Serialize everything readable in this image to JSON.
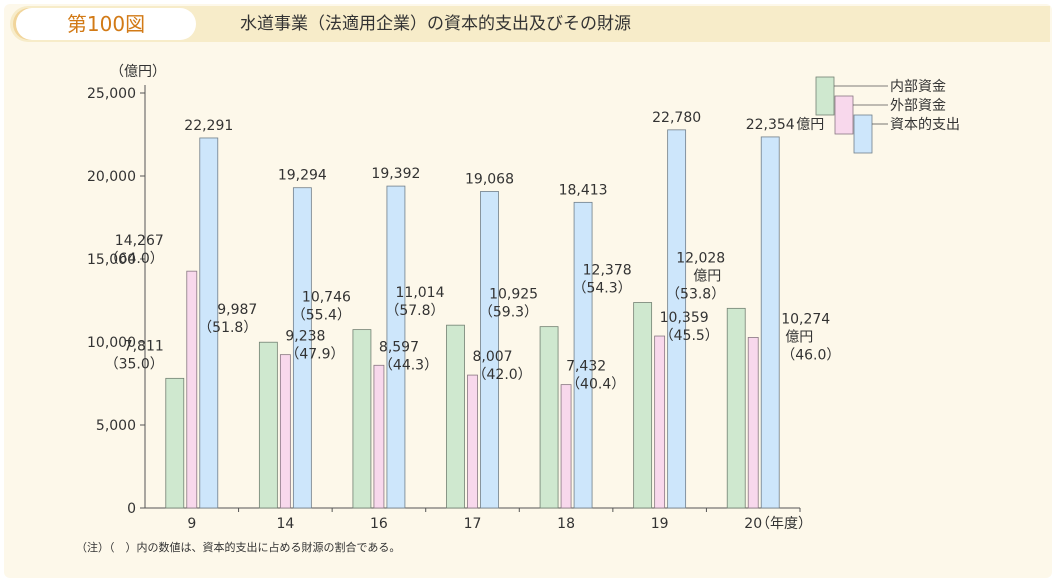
{
  "header": {
    "figure_label": "第100図",
    "title": "水道事業（法適用企業）の資本的支出及びその財源"
  },
  "note": "（注）（　）内の数値は、資本的支出に占める財源の割合である。",
  "chart_data": {
    "type": "bar",
    "unit_label": "（億円）",
    "x_axis_unit": "（年度）",
    "categories": [
      "9",
      "14",
      "16",
      "17",
      "18",
      "19",
      "20"
    ],
    "ylim": [
      0,
      25000
    ],
    "yticks": [
      "0",
      "5,000",
      "10,000",
      "15,000",
      "20,000",
      "25,000"
    ],
    "ytick_values": [
      0,
      5000,
      10000,
      15000,
      20000,
      25000
    ],
    "legend_position": "top-right",
    "series": [
      {
        "name": "内部資金",
        "color": "#cfe8cf",
        "values": [
          7811,
          9987,
          10746,
          11014,
          10925,
          12378,
          12028
        ],
        "labels": [
          "7,811",
          "9,987",
          "10,746",
          "11,014",
          "10,925",
          "12,378",
          "12,028"
        ],
        "shares": [
          "（35.0）",
          "（51.8）",
          "（55.4）",
          "（57.8）",
          "（59.3）",
          "（54.3）",
          "（53.8）"
        ]
      },
      {
        "name": "外部資金",
        "color": "#f8d8ec",
        "values": [
          14267,
          9238,
          8597,
          8007,
          7432,
          10359,
          10274
        ],
        "labels": [
          "14,267",
          "9,238",
          "8,597",
          "8,007",
          "7,432",
          "10,359",
          "10,274"
        ],
        "shares": [
          "（64.0）",
          "（47.9）",
          "（44.3）",
          "（42.0）",
          "（40.4）",
          "（45.5）",
          "（46.0）"
        ]
      },
      {
        "name": "資本的支出",
        "color": "#cde6fb",
        "values": [
          22291,
          19294,
          19392,
          19068,
          18413,
          22780,
          22354
        ],
        "labels": [
          "22,291",
          "19,294",
          "19,392",
          "19,068",
          "18,413",
          "22,780",
          "22,354"
        ]
      }
    ],
    "annotations": {
      "capital_last_unit": "億円",
      "internal_last_unit": "億円",
      "external_last_unit": "億円"
    }
  }
}
